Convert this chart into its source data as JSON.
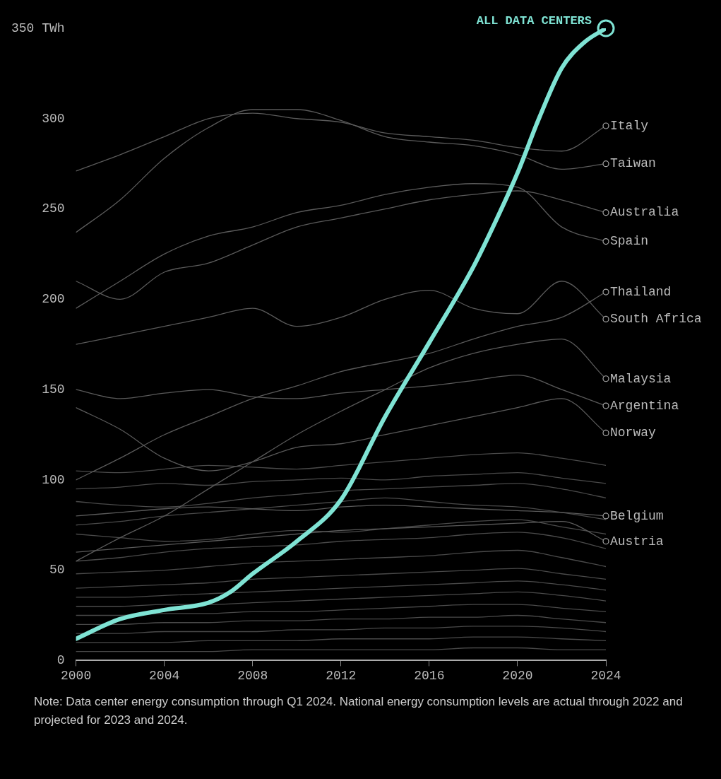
{
  "chart_data": {
    "type": "line",
    "xlim": [
      2000,
      2024
    ],
    "ylim": [
      0,
      350
    ],
    "xticks": [
      2000,
      2004,
      2008,
      2012,
      2016,
      2020,
      2024
    ],
    "yticks": [
      0,
      50,
      100,
      150,
      200,
      250,
      300,
      {
        "value": 350,
        "label": "350 TWh"
      }
    ],
    "grid": false,
    "legend": false,
    "marker": "none",
    "line_style": "solid",
    "x": [
      2000,
      2002,
      2004,
      2006,
      2008,
      2010,
      2012,
      2014,
      2016,
      2018,
      2020,
      2022,
      2024
    ],
    "series": [
      {
        "color": "#4a4a4a",
        "values": [
          105,
          104,
          106,
          108,
          107,
          106,
          108,
          110,
          112,
          114,
          115,
          112,
          108
        ]
      },
      {
        "color": "#4a4a4a",
        "values": [
          95,
          96,
          98,
          97,
          99,
          100,
          101,
          100,
          102,
          103,
          104,
          101,
          98
        ]
      },
      {
        "color": "#4a4a4a",
        "values": [
          88,
          86,
          85,
          87,
          90,
          92,
          94,
          95,
          96,
          97,
          98,
          95,
          90
        ]
      },
      {
        "color": "#4a4a4a",
        "values": [
          75,
          77,
          80,
          82,
          84,
          86,
          88,
          90,
          88,
          86,
          85,
          82,
          78
        ]
      },
      {
        "color": "#4a4a4a",
        "values": [
          70,
          68,
          66,
          67,
          70,
          72,
          71,
          73,
          75,
          77,
          78,
          74,
          70
        ]
      },
      {
        "color": "#4a4a4a",
        "values": [
          55,
          57,
          60,
          62,
          63,
          64,
          66,
          67,
          68,
          70,
          71,
          68,
          62
        ]
      },
      {
        "color": "#4a4a4a",
        "values": [
          48,
          49,
          50,
          52,
          54,
          55,
          56,
          57,
          58,
          60,
          61,
          57,
          52
        ]
      },
      {
        "color": "#4a4a4a",
        "values": [
          40,
          41,
          42,
          43,
          45,
          46,
          47,
          48,
          49,
          50,
          51,
          48,
          45
        ]
      },
      {
        "color": "#4a4a4a",
        "values": [
          35,
          35,
          36,
          37,
          38,
          39,
          40,
          41,
          42,
          43,
          44,
          42,
          39
        ]
      },
      {
        "color": "#4a4a4a",
        "values": [
          30,
          30,
          31,
          31,
          32,
          33,
          34,
          35,
          36,
          37,
          38,
          36,
          33
        ]
      },
      {
        "color": "#4a4a4a",
        "values": [
          25,
          25,
          26,
          26,
          27,
          27,
          28,
          29,
          30,
          31,
          31,
          29,
          27
        ]
      },
      {
        "color": "#4a4a4a",
        "values": [
          20,
          20,
          21,
          21,
          22,
          22,
          23,
          23,
          24,
          24,
          25,
          23,
          21
        ]
      },
      {
        "color": "#4a4a4a",
        "values": [
          15,
          15,
          16,
          16,
          16,
          17,
          17,
          18,
          18,
          19,
          19,
          18,
          16
        ]
      },
      {
        "color": "#4a4a4a",
        "values": [
          10,
          10,
          10,
          11,
          11,
          11,
          12,
          12,
          12,
          13,
          13,
          12,
          11
        ]
      },
      {
        "color": "#4a4a4a",
        "values": [
          5,
          5,
          5,
          5,
          6,
          6,
          6,
          6,
          6,
          7,
          7,
          6,
          6
        ]
      },
      {
        "name": "Italy",
        "color": "#5a5a5a",
        "values": [
          271,
          280,
          290,
          300,
          303,
          300,
          298,
          292,
          290,
          288,
          284,
          282,
          296
        ]
      },
      {
        "name": "Taiwan",
        "color": "#5a5a5a",
        "values": [
          237,
          255,
          278,
          295,
          305,
          305,
          299,
          290,
          287,
          285,
          280,
          272,
          275
        ]
      },
      {
        "name": "Australia",
        "color": "#5a5a5a",
        "values": [
          210,
          200,
          215,
          220,
          230,
          240,
          245,
          250,
          255,
          258,
          260,
          255,
          248
        ]
      },
      {
        "name": "Spain",
        "color": "#5a5a5a",
        "values": [
          195,
          210,
          225,
          235,
          240,
          248,
          252,
          258,
          262,
          264,
          262,
          240,
          232
        ]
      },
      {
        "name": "Thailand",
        "color": "#5a5a5a",
        "values": [
          100,
          112,
          125,
          135,
          145,
          152,
          160,
          165,
          170,
          178,
          185,
          190,
          204
        ]
      },
      {
        "name": "South Africa",
        "color": "#5a5a5a",
        "values": [
          175,
          180,
          185,
          190,
          195,
          185,
          190,
          200,
          205,
          195,
          192,
          210,
          189
        ]
      },
      {
        "name": "Malaysia",
        "color": "#5a5a5a",
        "values": [
          55,
          68,
          80,
          95,
          110,
          125,
          138,
          150,
          162,
          170,
          175,
          178,
          156
        ]
      },
      {
        "name": "Argentina",
        "color": "#5a5a5a",
        "values": [
          150,
          145,
          148,
          150,
          146,
          145,
          148,
          150,
          152,
          155,
          158,
          150,
          141
        ]
      },
      {
        "name": "Norway",
        "color": "#5a5a5a",
        "values": [
          140,
          128,
          112,
          105,
          110,
          118,
          120,
          125,
          130,
          135,
          140,
          145,
          126
        ]
      },
      {
        "name": "Belgium",
        "color": "#5a5a5a",
        "values": [
          80,
          82,
          84,
          85,
          84,
          83,
          85,
          86,
          85,
          84,
          83,
          82,
          80
        ]
      },
      {
        "name": "Austria",
        "color": "#5a5a5a",
        "values": [
          60,
          62,
          64,
          66,
          68,
          70,
          72,
          73,
          74,
          75,
          76,
          77,
          66
        ]
      },
      {
        "name": "ALL DATA CENTERS",
        "color": "#7fe3d4",
        "x": [
          2000,
          2002,
          2004,
          2006,
          2007,
          2008,
          2010,
          2012,
          2014,
          2016,
          2018,
          2019,
          2020,
          2021,
          2022,
          2023,
          2024
        ],
        "values": [
          12,
          23,
          28,
          32,
          38,
          48,
          66,
          89,
          135,
          176,
          218,
          243,
          270,
          301,
          328,
          342,
          350
        ]
      }
    ],
    "annotations": [
      "Note: Data center energy consumption through Q1 2024. National energy consumption levels are actual through 2022 and projected for 2023 and 2024."
    ]
  }
}
